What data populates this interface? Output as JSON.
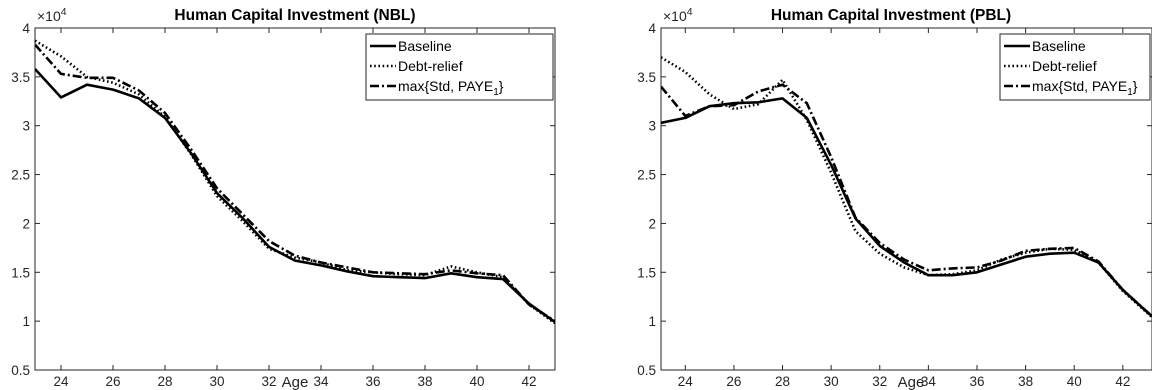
{
  "chart_data": [
    {
      "type": "line",
      "title": "Human Capital Investment (NBL)",
      "xlabel": "Age",
      "ylabel": "",
      "y_multiplier": "×10",
      "y_multiplier_exp": "4",
      "xlim": [
        23,
        43
      ],
      "ylim": [
        0.5,
        4
      ],
      "xticks": [
        "24",
        "26",
        "28",
        "30",
        "32",
        "34",
        "36",
        "38",
        "40",
        "42"
      ],
      "yticks": [
        "0.5",
        "1",
        "1.5",
        "2",
        "2.5",
        "3",
        "3.5",
        "4"
      ],
      "grid": false,
      "legend_position": "top-right",
      "series": [
        {
          "name": "Baseline",
          "style": "solid",
          "x": [
            23,
            24,
            25,
            26,
            27,
            28,
            29,
            30,
            31,
            32,
            33,
            34,
            35,
            36,
            37,
            38,
            39,
            40,
            41,
            42,
            43
          ],
          "y": [
            3.58,
            3.29,
            3.42,
            3.37,
            3.28,
            3.08,
            2.72,
            2.31,
            2.05,
            1.76,
            1.62,
            1.57,
            1.51,
            1.46,
            1.45,
            1.44,
            1.49,
            1.45,
            1.43,
            1.18,
            0.99
          ]
        },
        {
          "name": "Debt-relief",
          "style": "dotted",
          "x": [
            23,
            24,
            25,
            26,
            27,
            28,
            29,
            30,
            31,
            32,
            33,
            34,
            35,
            36,
            37,
            38,
            39,
            40,
            41,
            42,
            43
          ],
          "y": [
            3.87,
            3.71,
            3.5,
            3.44,
            3.32,
            3.09,
            2.71,
            2.28,
            2.02,
            1.74,
            1.65,
            1.6,
            1.52,
            1.5,
            1.48,
            1.47,
            1.56,
            1.5,
            1.45,
            1.17,
            0.98
          ]
        },
        {
          "name": "max{Std, PAYE",
          "name_sub": "1",
          "name_end": "}",
          "style": "dashdot",
          "x": [
            23,
            24,
            25,
            26,
            27,
            28,
            29,
            30,
            31,
            32,
            33,
            34,
            35,
            36,
            37,
            38,
            39,
            40,
            41,
            42,
            43
          ],
          "y": [
            3.83,
            3.53,
            3.49,
            3.49,
            3.36,
            3.13,
            2.76,
            2.36,
            2.09,
            1.82,
            1.67,
            1.6,
            1.55,
            1.5,
            1.49,
            1.48,
            1.52,
            1.49,
            1.47,
            1.17,
            1.0
          ]
        }
      ]
    },
    {
      "type": "line",
      "title": "Human Capital Investment (PBL)",
      "xlabel": "Age",
      "ylabel": "",
      "y_multiplier": "×10",
      "y_multiplier_exp": "4",
      "xlim": [
        23,
        43.2
      ],
      "ylim": [
        0.5,
        4
      ],
      "xticks": [
        "24",
        "26",
        "28",
        "30",
        "32",
        "34",
        "36",
        "38",
        "40",
        "42"
      ],
      "yticks": [
        "0.5",
        "1",
        "1.5",
        "2",
        "2.5",
        "3",
        "3.5",
        "4"
      ],
      "grid": false,
      "legend_position": "top-right",
      "series": [
        {
          "name": "Baseline",
          "style": "solid",
          "x": [
            23,
            24,
            25,
            26,
            27,
            28,
            29,
            30,
            31,
            32,
            33,
            34,
            35,
            36,
            37,
            38,
            39,
            40,
            41,
            42,
            43.2
          ],
          "y": [
            3.03,
            3.08,
            3.2,
            3.23,
            3.24,
            3.28,
            3.08,
            2.6,
            2.05,
            1.77,
            1.6,
            1.47,
            1.47,
            1.5,
            1.58,
            1.66,
            1.69,
            1.7,
            1.6,
            1.32,
            1.05
          ]
        },
        {
          "name": "Debt-relief",
          "style": "dotted",
          "x": [
            23,
            24,
            25,
            26,
            27,
            28,
            29,
            30,
            31,
            32,
            33,
            34,
            35,
            36,
            37,
            38,
            39,
            40,
            41,
            42,
            43.2
          ],
          "y": [
            3.7,
            3.55,
            3.32,
            3.17,
            3.22,
            3.47,
            3.06,
            2.52,
            1.92,
            1.69,
            1.55,
            1.47,
            1.48,
            1.52,
            1.63,
            1.7,
            1.74,
            1.73,
            1.6,
            1.31,
            1.04
          ]
        },
        {
          "name": "max{Std, PAYE",
          "name_sub": "1",
          "name_end": "}",
          "style": "dashdot",
          "x": [
            23,
            24,
            25,
            26,
            27,
            28,
            29,
            30,
            31,
            32,
            33,
            34,
            35,
            36,
            37,
            38,
            39,
            40,
            41,
            42,
            43.2
          ],
          "y": [
            3.4,
            3.1,
            3.2,
            3.21,
            3.35,
            3.42,
            3.23,
            2.68,
            2.06,
            1.8,
            1.63,
            1.52,
            1.54,
            1.55,
            1.62,
            1.72,
            1.74,
            1.75,
            1.61,
            1.32,
            1.05
          ]
        }
      ]
    }
  ]
}
